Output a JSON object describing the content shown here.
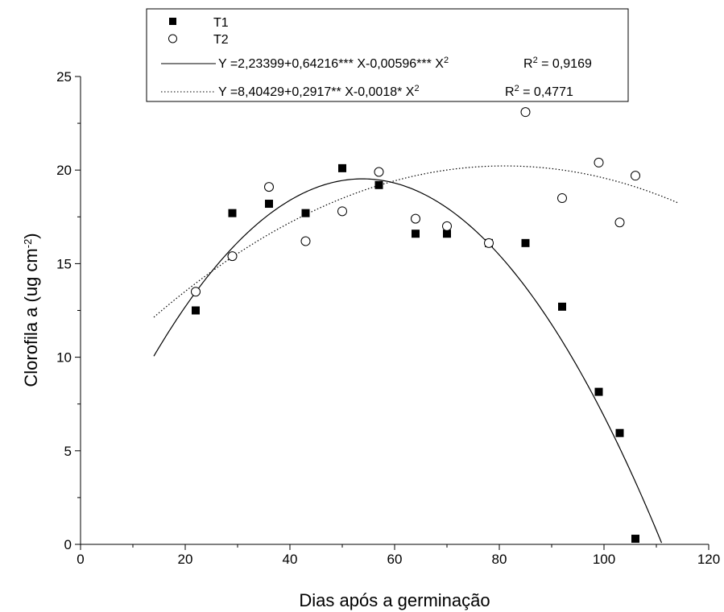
{
  "chart_data": {
    "type": "scatter",
    "xlabel": "Dias após a germinação",
    "ylabel_main": "Clorofila a (ug cm",
    "ylabel_sup": "-2",
    "ylabel_close": ")",
    "xlim": [
      0,
      120
    ],
    "ylim": [
      0,
      25
    ],
    "x_ticks": [
      0,
      20,
      40,
      60,
      80,
      100,
      120
    ],
    "y_ticks": [
      0,
      5,
      10,
      15,
      20,
      25
    ],
    "grid": false,
    "legend_position": "top",
    "series": [
      {
        "name": "T1",
        "marker": "filled-square",
        "points": [
          [
            22,
            12.5
          ],
          [
            29,
            17.7
          ],
          [
            36,
            18.2
          ],
          [
            43,
            17.7
          ],
          [
            50,
            20.1
          ],
          [
            57,
            19.2
          ],
          [
            64,
            16.6
          ],
          [
            70,
            16.6
          ],
          [
            78,
            16.1
          ],
          [
            85,
            16.1
          ],
          [
            92,
            12.7
          ],
          [
            99,
            8.15
          ],
          [
            103,
            5.95
          ],
          [
            106,
            0.3
          ]
        ]
      },
      {
        "name": "T2",
        "marker": "open-circle",
        "points": [
          [
            22,
            13.5
          ],
          [
            29,
            15.4
          ],
          [
            36,
            19.1
          ],
          [
            43,
            16.2
          ],
          [
            50,
            17.8
          ],
          [
            57,
            19.9
          ],
          [
            64,
            17.4
          ],
          [
            70,
            17.0
          ],
          [
            78,
            16.1
          ],
          [
            85,
            23.1
          ],
          [
            92,
            18.5
          ],
          [
            99,
            20.4
          ],
          [
            103,
            17.2
          ],
          [
            106,
            19.7
          ]
        ]
      }
    ],
    "fits": [
      {
        "for": "T1",
        "style": "solid",
        "coefficients": [
          2.23399,
          0.64216,
          -0.00596
        ],
        "x_range": [
          14,
          111
        ],
        "equation_prefix": "Y =2,23399+0,64216*** X-0,00596*** X",
        "r2_label": "R",
        "r2_value": " = 0,9169"
      },
      {
        "for": "T2",
        "style": "dotted",
        "coefficients": [
          8.40429,
          0.2917,
          -0.0018
        ],
        "x_range": [
          14,
          114
        ],
        "equation_prefix": "Y =8,40429+0,2917** X-0,0018* X",
        "r2_label": "R",
        "r2_value": " = 0,4771"
      }
    ],
    "superscript_2": "2"
  }
}
